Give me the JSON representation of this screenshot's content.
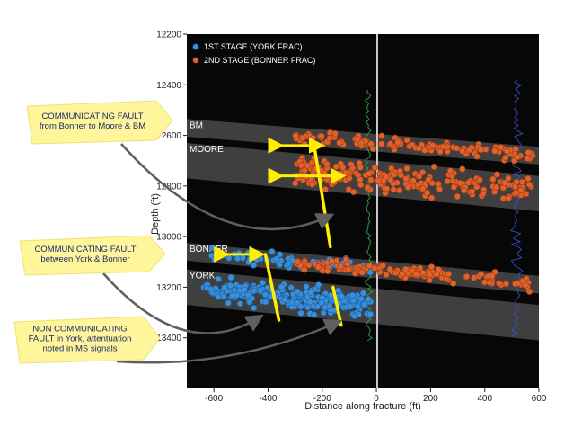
{
  "chart_data": {
    "type": "scatter",
    "xlabel": "Distance along fracture (ft)",
    "ylabel": "Depth (ft)",
    "xlim": [
      -700,
      600
    ],
    "ylim": [
      12200,
      13600
    ],
    "y_inverted": true,
    "x_ticks": [
      "-600",
      "-400",
      "-200",
      "0",
      "200",
      "400",
      "600"
    ],
    "y_ticks": [
      "12200",
      "12400",
      "12600",
      "12800",
      "13000",
      "13200",
      "13400"
    ],
    "legend": {
      "placement": "top-left"
    },
    "series": [
      {
        "name": "1ST STAGE (YORK FRAC)",
        "color": "#3a8fd9",
        "x_range": [
          -640,
          -20
        ],
        "y_range": [
          13020,
          13380
        ],
        "approx_count": 300
      },
      {
        "name": "2ND STAGE (BONNER FRAC)",
        "color": "#e0622c",
        "x_range": [
          -300,
          580
        ],
        "y_range": [
          12560,
          13230
        ],
        "approx_count": 450
      }
    ],
    "formations": [
      {
        "label": "BM",
        "depth_left": 12570,
        "depth_right": 12680,
        "thickness": 70
      },
      {
        "label": "MOORE",
        "depth_left": 12700,
        "depth_right": 12830,
        "thickness": 140
      },
      {
        "label": "BONNER",
        "depth_left": 13060,
        "depth_right": 13190,
        "thickness": 70
      },
      {
        "label": "YORK",
        "depth_left": 13200,
        "depth_right": 13340,
        "thickness": 140
      }
    ],
    "annotations": [
      {
        "lines": [
          "COMMUNICATING FAULT",
          "from Bonner to Moore & BM"
        ]
      },
      {
        "lines": [
          "COMMUNICATING FAULT",
          "between York & Bonner"
        ]
      },
      {
        "lines": [
          "NON COMMUNICATING",
          "FAULT in York, attentuation",
          "noted in MS signals"
        ]
      }
    ],
    "fault_markers": [
      {
        "type": "fault-line",
        "x1": -230,
        "y1": 12640,
        "x2": -170,
        "y2": 13040
      },
      {
        "type": "double-arrow",
        "x1": -380,
        "x2": -190,
        "y": 12640
      },
      {
        "type": "double-arrow",
        "x1": -380,
        "x2": -110,
        "y": 12760
      },
      {
        "type": "fault-line",
        "x1": -410,
        "y1": 13070,
        "x2": -360,
        "y2": 13330
      },
      {
        "type": "double-arrow",
        "x1": -580,
        "x2": -410,
        "y": 13070
      },
      {
        "type": "fault-line",
        "x1": -160,
        "y1": 13200,
        "x2": -130,
        "y2": 13350
      }
    ],
    "grid": false
  }
}
